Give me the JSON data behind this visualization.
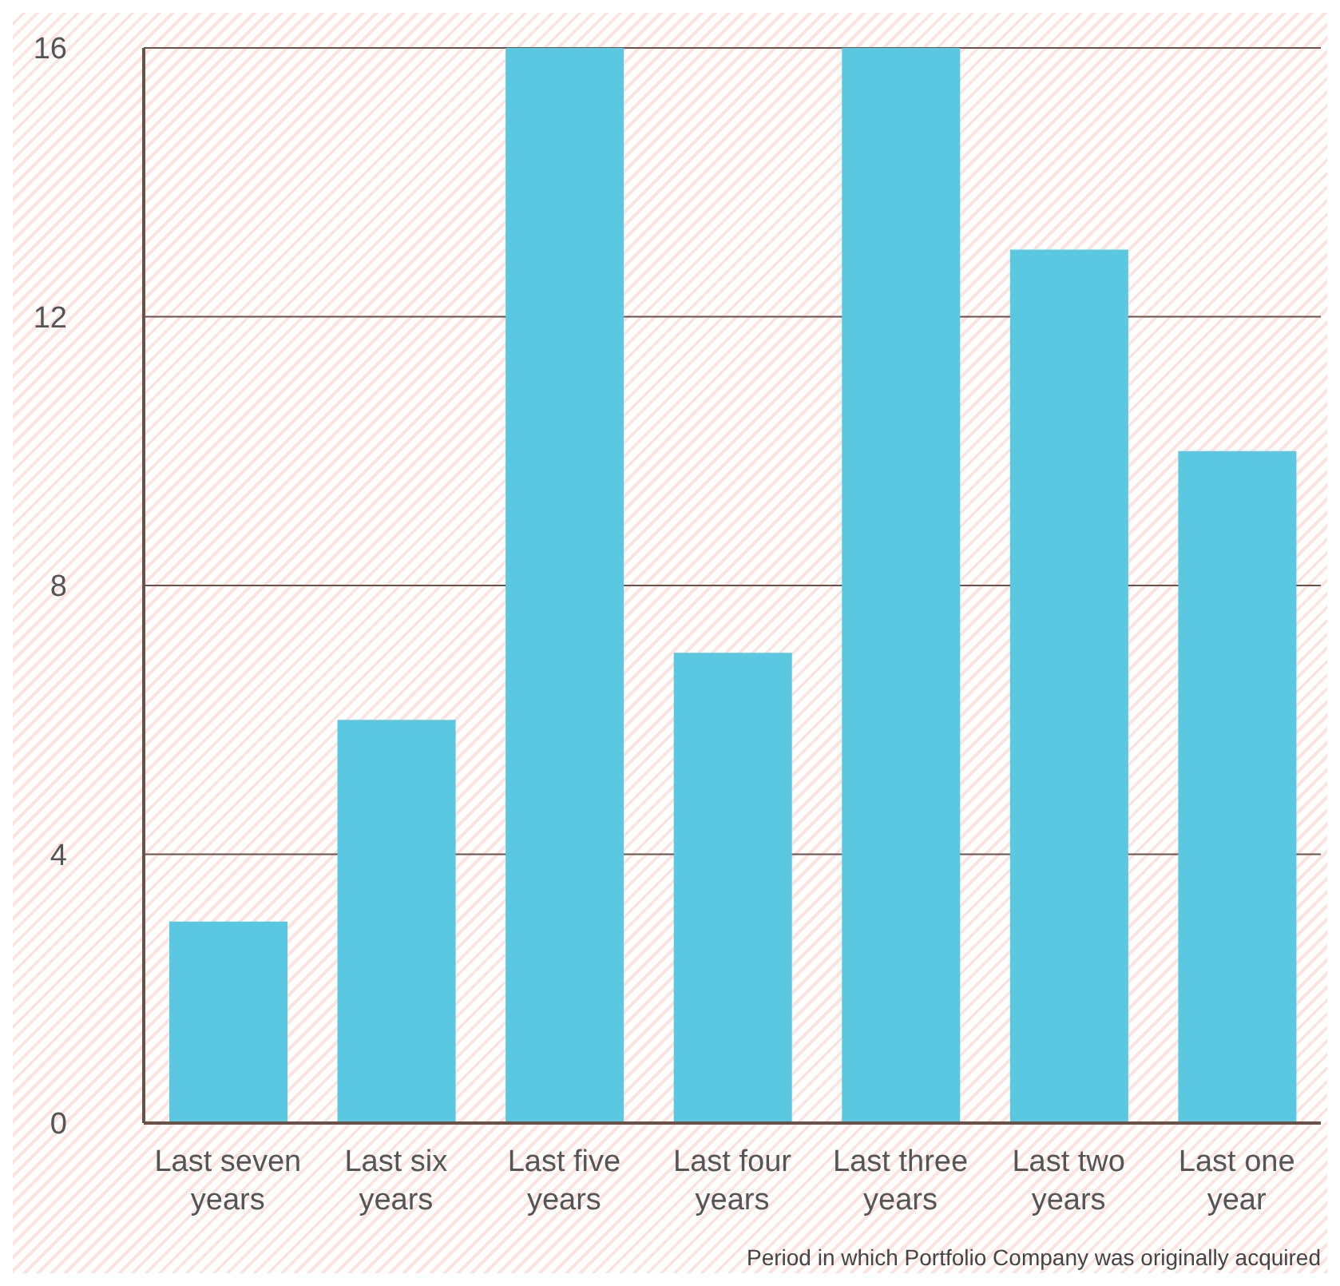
{
  "chart_data": {
    "type": "bar",
    "xlabel": "Period in which Portfolio Company was originally acquired",
    "categories": [
      "Last seven years",
      "Last six years",
      "Last five years",
      "Last four years",
      "Last three years",
      "Last two years",
      "Last one year"
    ],
    "values": [
      3,
      6,
      16,
      7,
      16,
      13,
      10
    ],
    "color": "#5bc8e2",
    "ylim": [
      0,
      16
    ],
    "yticks": [
      0,
      4,
      8,
      12,
      16
    ],
    "grid": "y"
  }
}
